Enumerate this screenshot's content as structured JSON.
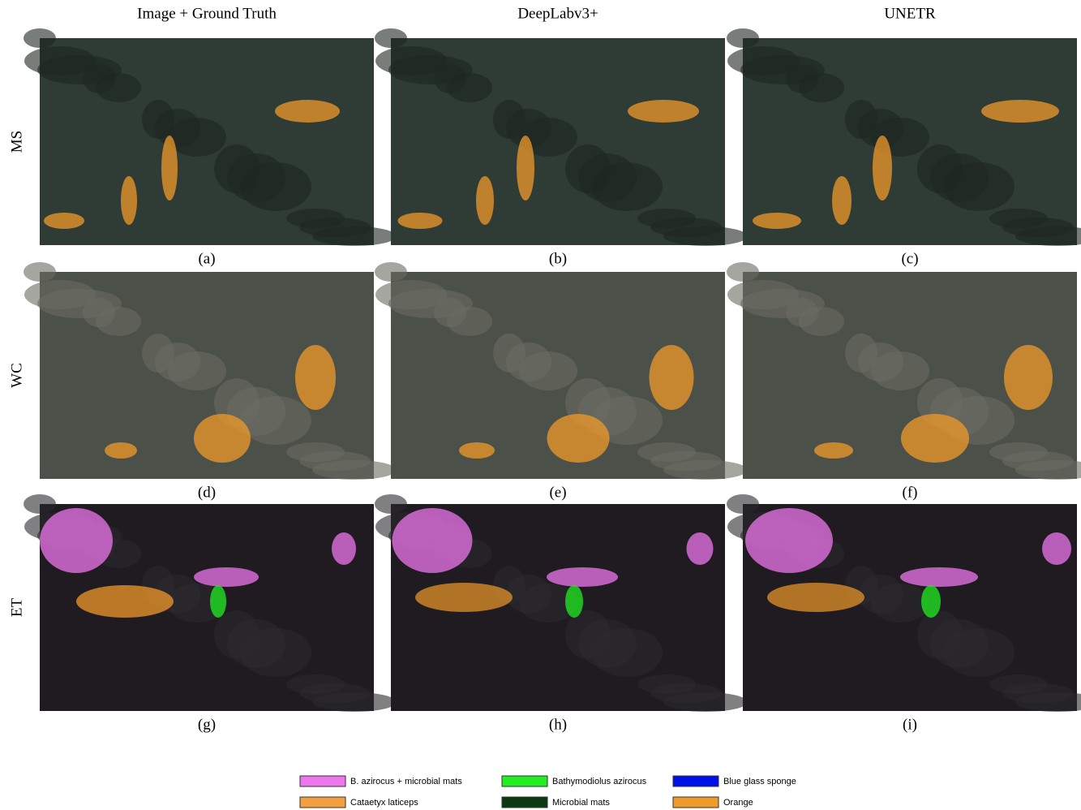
{
  "columns": [
    "Image + Ground Truth",
    "DeepLabv3+",
    "UNETR"
  ],
  "rows": [
    "MS",
    "WC",
    "ET"
  ],
  "captions": [
    "(a)",
    "(b)",
    "(c)",
    "(d)",
    "(e)",
    "(f)",
    "(g)",
    "(h)",
    "(i)"
  ],
  "legend": [
    {
      "label": "B. azirocus + microbial mats",
      "color": "#ee77ee"
    },
    {
      "label": "Bathymodiolus azirocus",
      "color": "#22ee22"
    },
    {
      "label": "Blue glass sponge",
      "color": "#0010e8"
    },
    {
      "label": "Cataetyx laticeps",
      "color": "#f5a040"
    },
    {
      "label": "Microbial mats",
      "color": "#0b3a10"
    },
    {
      "label": "Orange",
      "color": "#f09a2a"
    }
  ]
}
